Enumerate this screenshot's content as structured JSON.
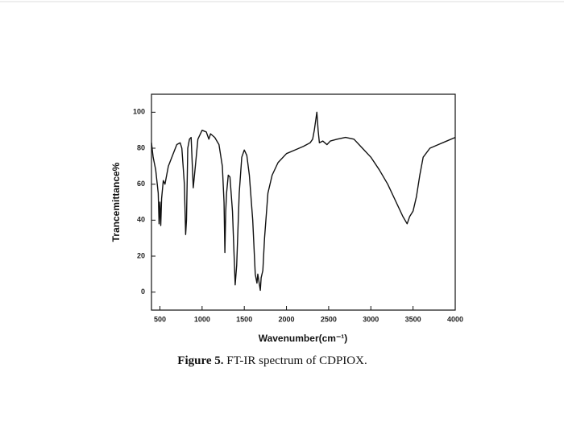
{
  "chart_data": {
    "type": "line",
    "x_label": "Wavenumber(cm⁻¹)",
    "y_label": "Trancemittance%",
    "caption_label": "Figure 5.",
    "caption_text": "FT-IR spectrum of CDPIOX.",
    "xlim": [
      400,
      4000
    ],
    "ylim": [
      -10,
      110
    ],
    "xticks": [
      500,
      1000,
      1500,
      2000,
      2500,
      3000,
      3500,
      4000
    ],
    "yticks": [
      0,
      20,
      40,
      60,
      80,
      100
    ],
    "grid": false,
    "series": [
      {
        "color": "#111111",
        "x": [
          400,
          420,
          450,
          480,
          490,
          500,
          510,
          520,
          540,
          560,
          600,
          650,
          700,
          740,
          760,
          790,
          805,
          815,
          830,
          850,
          870,
          880,
          895,
          920,
          950,
          1000,
          1050,
          1080,
          1100,
          1150,
          1200,
          1240,
          1260,
          1270,
          1280,
          1290,
          1310,
          1330,
          1360,
          1392,
          1410,
          1440,
          1470,
          1500,
          1530,
          1560,
          1600,
          1630,
          1650,
          1660,
          1690,
          1700,
          1720,
          1740,
          1780,
          1830,
          1900,
          2000,
          2100,
          2200,
          2280,
          2310,
          2330,
          2360,
          2375,
          2390,
          2430,
          2480,
          2520,
          2600,
          2700,
          2800,
          2900,
          3000,
          3100,
          3200,
          3300,
          3380,
          3430,
          3460,
          3500,
          3540,
          3580,
          3620,
          3700,
          3800,
          3900,
          4000
        ],
        "values": [
          83,
          75,
          68,
          55,
          38,
          50,
          37,
          52,
          62,
          60,
          70,
          76,
          82,
          83,
          80,
          60,
          32,
          40,
          80,
          85,
          86,
          75,
          58,
          70,
          85,
          90,
          89,
          85,
          88,
          86,
          82,
          70,
          50,
          22,
          45,
          55,
          65,
          64,
          45,
          4,
          15,
          55,
          75,
          79,
          76,
          65,
          40,
          10,
          5,
          10,
          1,
          8,
          12,
          30,
          55,
          65,
          72,
          77,
          79,
          81,
          83,
          85,
          90,
          100,
          90,
          83,
          84,
          82,
          84,
          85,
          86,
          85,
          80,
          75,
          68,
          60,
          50,
          42,
          38,
          42,
          45,
          53,
          65,
          75,
          80,
          82,
          84,
          86
        ]
      }
    ]
  }
}
